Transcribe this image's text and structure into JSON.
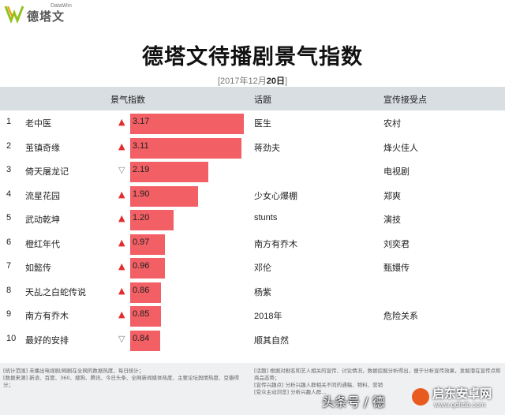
{
  "brand": {
    "name": "德塔文",
    "sub": "DataWin"
  },
  "title": "德塔文待播剧景气指数",
  "date": {
    "prefix": "[2017年12月",
    "day": "20日",
    "suffix": "]"
  },
  "headers": {
    "index": "景气指数",
    "topic": "话题",
    "promo": "宣传接受点"
  },
  "chart_data": {
    "type": "bar",
    "title": "德塔文待播剧景气指数",
    "categories": [
      "老中医",
      "茧镇奇缘",
      "倚天屠龙记",
      "流星花园",
      "武动乾坤",
      "橙红年代",
      "如懿传",
      "天乩之白蛇传说",
      "南方有乔木",
      "最好的安排"
    ],
    "values": [
      3.17,
      3.11,
      2.19,
      1.9,
      1.2,
      0.97,
      0.96,
      0.86,
      0.85,
      0.84
    ],
    "value_labels": [
      "3.17",
      "3.11",
      "2.19",
      "1.90",
      "1.20",
      "0.97",
      "0.96",
      "0.86",
      "0.85",
      "0.84"
    ],
    "xlim": [
      0,
      3.17
    ],
    "bar_color": "#f25f64"
  },
  "rows": [
    {
      "rank": "1",
      "name": "老中医",
      "trend": "up",
      "value": "3.17",
      "topic": "医生",
      "promo": "农村"
    },
    {
      "rank": "2",
      "name": "茧镇奇缘",
      "trend": "up",
      "value": "3.11",
      "topic": "蒋劲夫",
      "promo": "烽火佳人"
    },
    {
      "rank": "3",
      "name": "倚天屠龙记",
      "trend": "down",
      "value": "2.19",
      "topic": "",
      "promo": "电视剧"
    },
    {
      "rank": "4",
      "name": "流星花园",
      "trend": "up",
      "value": "1.90",
      "topic": "少女心爆棚",
      "promo": "郑爽"
    },
    {
      "rank": "5",
      "name": "武动乾坤",
      "trend": "up",
      "value": "1.20",
      "topic": "stunts",
      "promo": "演技"
    },
    {
      "rank": "6",
      "name": "橙红年代",
      "trend": "up",
      "value": "0.97",
      "topic": "南方有乔木",
      "promo": "刘奕君"
    },
    {
      "rank": "7",
      "name": "如懿传",
      "trend": "up",
      "value": "0.96",
      "topic": "邓伦",
      "promo": "甄嬛传"
    },
    {
      "rank": "8",
      "name": "天乩之白蛇传说",
      "trend": "up",
      "value": "0.86",
      "topic": "杨紫",
      "promo": ""
    },
    {
      "rank": "9",
      "name": "南方有乔木",
      "trend": "up",
      "value": "0.85",
      "topic": "2018年",
      "promo": "危险关系"
    },
    {
      "rank": "10",
      "name": "最好的安排",
      "trend": "down",
      "value": "0.84",
      "topic": "顺其自然",
      "promo": ""
    }
  ],
  "arrows": {
    "up": "▲",
    "down": "▽"
  },
  "footer": {
    "left": "[统计范围] 未播出电视剧/网剧在全网的数据热度，每日统计；\n[数据来源] 新浪、百度、360、搜狗、腾讯、今日头条、全网新闻媒体热度、主要论坛舆情热度、豆瓣得分；",
    "right": "[话题] 根据对剧名和艺人相关的宣传、讨论情况，数据挖掘分析得出，便于分析宣传效果，发掘潜在宣传点和商品态势；\n[宣传兴趣点] 分析兴趣人群相关不同的通稿、物料、营销\n[受众主动浏览] 分析兴趣人群..."
  },
  "watermark": {
    "left": "头条号 / 德",
    "site": "启东安卓网",
    "url": "www.qdltdb.com"
  },
  "colors": {
    "header_bg": "#d9dee3",
    "bar": "#f25f64",
    "up": "#e52c2c",
    "down": "#888888"
  }
}
